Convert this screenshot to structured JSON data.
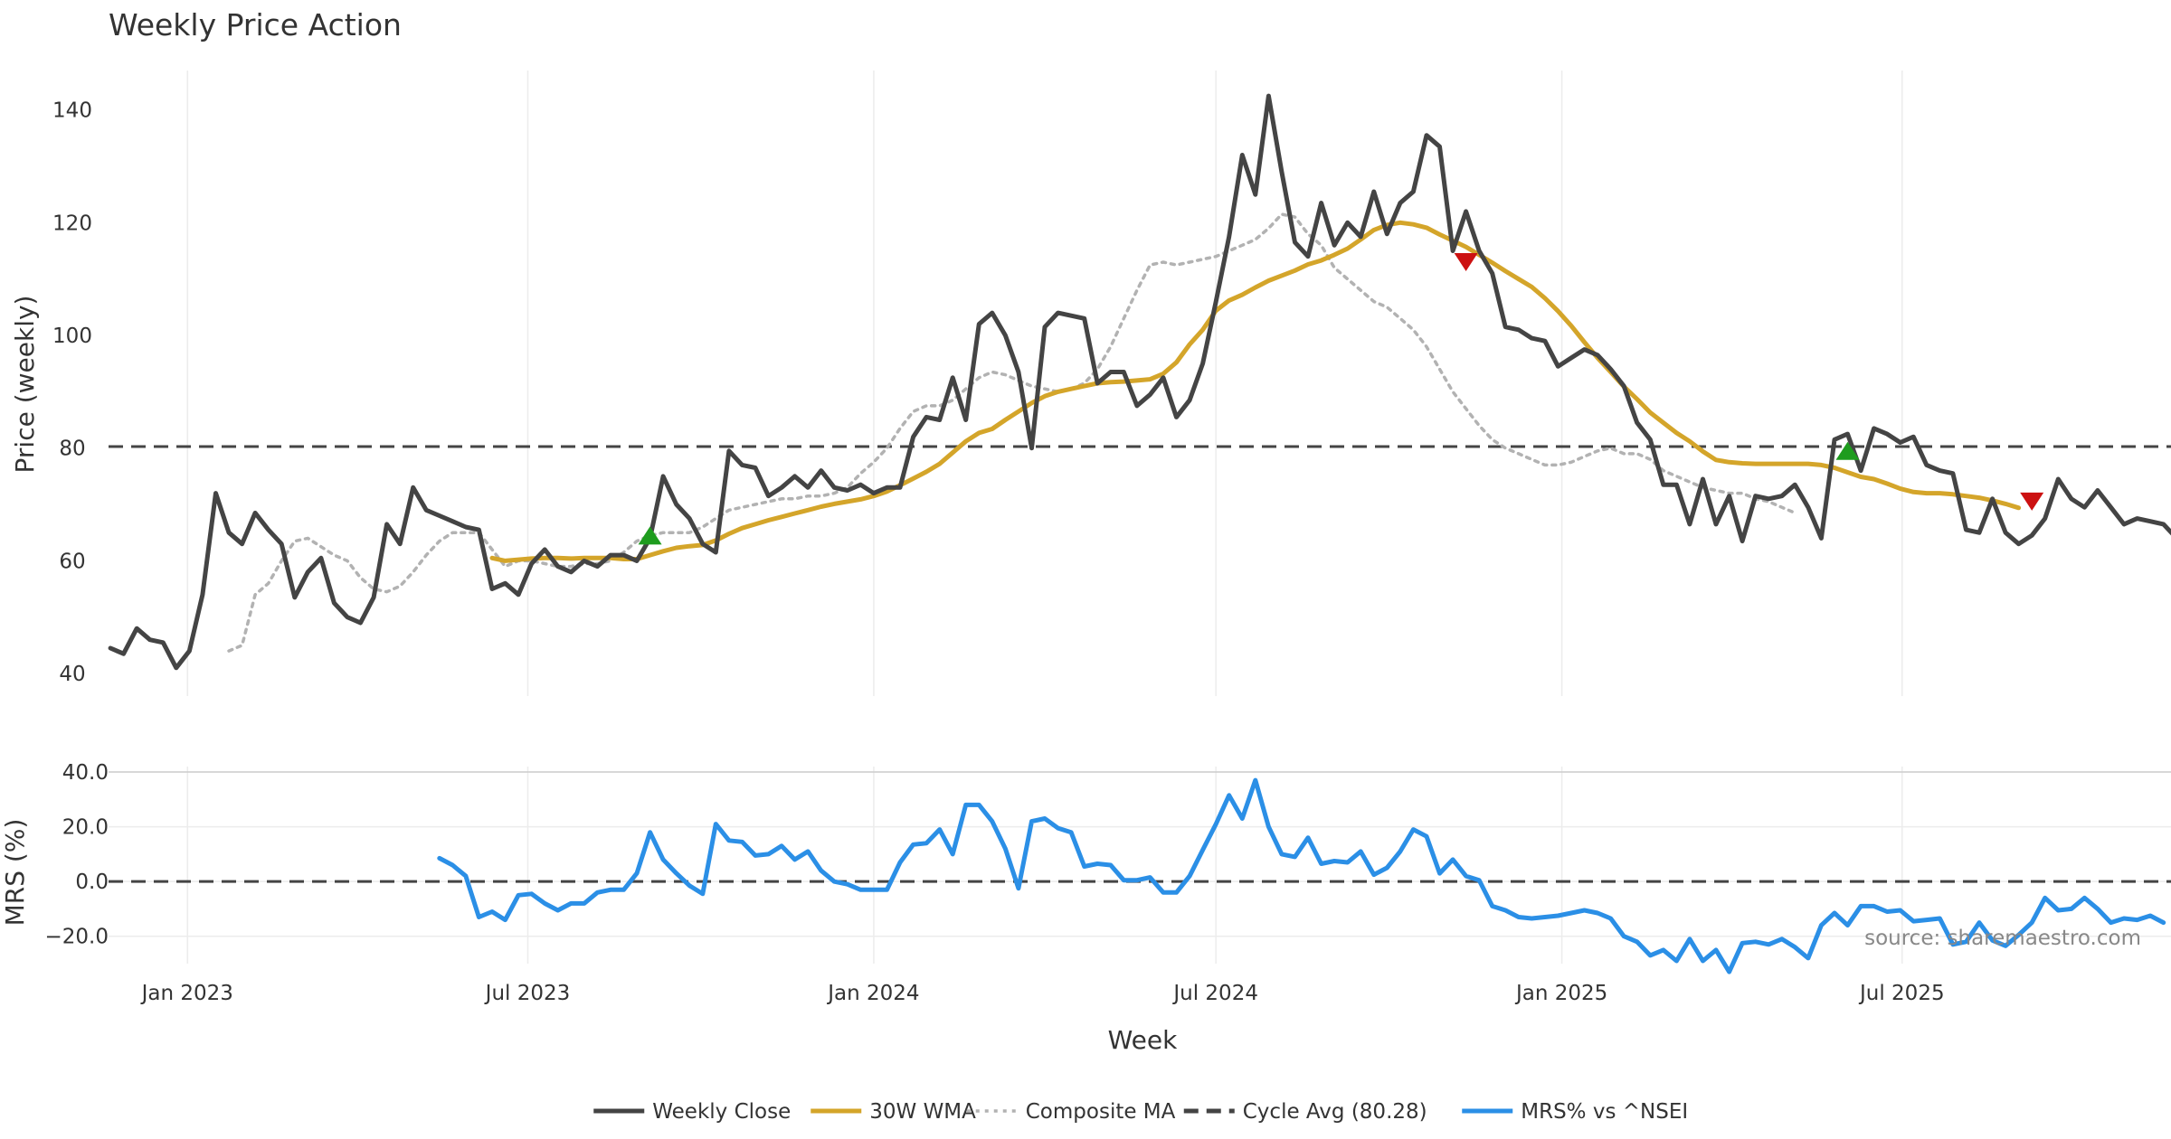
{
  "colors": {
    "close": "#444444",
    "wma": "#d4a52a",
    "composite": "#b2b2b2",
    "cycle": "#444444",
    "mrs": "#2b8fe6",
    "buy": "#1e9c1e",
    "sell": "#cc1111",
    "grid": "#ececec"
  },
  "chart_data": [
    {
      "type": "line",
      "title": "Weekly Price Action",
      "xlabel": "",
      "ylabel": "Price (weekly)",
      "ylim": [
        36,
        147
      ],
      "yticks": [
        40,
        60,
        80,
        100,
        120,
        140
      ],
      "x_start": "2022-11-21",
      "x_step_days": 7,
      "xlim": [
        "2022-11-20",
        "2025-11-21"
      ],
      "xticks": [
        {
          "date": "2023-01-01",
          "label": "Jan 2023"
        },
        {
          "date": "2023-07-01",
          "label": "Jul 2023"
        },
        {
          "date": "2024-01-01",
          "label": "Jan 2024"
        },
        {
          "date": "2024-07-01",
          "label": "Jul 2024"
        },
        {
          "date": "2025-01-01",
          "label": "Jan 2025"
        },
        {
          "date": "2025-07-01",
          "label": "Jul 2025"
        }
      ],
      "series": [
        {
          "name": "Weekly Close",
          "style": "solid",
          "start_index": 0,
          "values": [
            44.5,
            43.5,
            48,
            46,
            45.5,
            41,
            44,
            54,
            72,
            65,
            63,
            68.5,
            65.5,
            63,
            53.5,
            58,
            60.5,
            52.5,
            50,
            49,
            53.5,
            66.5,
            63,
            73,
            69,
            68,
            67,
            66,
            65.5,
            55,
            56,
            54,
            59.5,
            62,
            59,
            58,
            60,
            59,
            61,
            61,
            60,
            64,
            75,
            70,
            67.5,
            63,
            61.5,
            79.5,
            77,
            76.5,
            71.5,
            73,
            75,
            73,
            76,
            73,
            72.5,
            73.5,
            72,
            73,
            73,
            82,
            85.5,
            85,
            92.5,
            85,
            102,
            104,
            100,
            93.5,
            80,
            101.5,
            104,
            103.5,
            103,
            91.5,
            93.5,
            93.5,
            87.5,
            89.5,
            92.5,
            85.5,
            88.5,
            95,
            106,
            117.5,
            132,
            125,
            142.5,
            129,
            116.5,
            114,
            123.5,
            116,
            120,
            117.5,
            125.5,
            118,
            123.5,
            125.5,
            135.5,
            133.5,
            115,
            122,
            115,
            111,
            101.5,
            101,
            99.5,
            99,
            94.5,
            96,
            97.5,
            96.5,
            94,
            91,
            84.5,
            81.5,
            73.5,
            73.5,
            66.5,
            74.5,
            66.5,
            71.5,
            63.5,
            71.5,
            71,
            71.5,
            73.5,
            69.5,
            64,
            81.5,
            82.5,
            76,
            83.5,
            82.5,
            81,
            82,
            77,
            76,
            75.5,
            65.5,
            65,
            71,
            65,
            63,
            64.5,
            67.5,
            74.5,
            71,
            69.5,
            72.5,
            69.5,
            66.5,
            67.5,
            67,
            66.5,
            64
          ]
        },
        {
          "name": "30W WMA",
          "style": "solid",
          "start_index": 29,
          "values": [
            60.5,
            60,
            60.2,
            60.4,
            60.5,
            60.5,
            60.4,
            60.5,
            60.5,
            60.5,
            60.3,
            60.3,
            61,
            61.7,
            62.3,
            62.6,
            62.8,
            63.6,
            64.8,
            65.8,
            66.5,
            67.2,
            67.8,
            68.4,
            69,
            69.6,
            70.1,
            70.5,
            70.9,
            71.5,
            72.3,
            73.4,
            74.6,
            75.8,
            77.2,
            79.2,
            81.2,
            82.7,
            83.4,
            85,
            86.5,
            88,
            89.2,
            90,
            90.5,
            91,
            91.5,
            91.7,
            91.8,
            92,
            92.2,
            93.2,
            95.2,
            98.4,
            101,
            104.4,
            106.2,
            107.2,
            108.5,
            109.7,
            110.6,
            111.5,
            112.6,
            113.3,
            114.3,
            115.4,
            117,
            118.7,
            119.6,
            120,
            119.7,
            119.1,
            117.9,
            116.8,
            115.7,
            114.3,
            112.9,
            111.4,
            110,
            108.6,
            106.6,
            104.3,
            101.7,
            98.8,
            96,
            93.5,
            90.9,
            88.7,
            86.3,
            84.5,
            82.7,
            81.2,
            79.4,
            77.9,
            77.5,
            77.3,
            77.2,
            77.2,
            77.2,
            77.2,
            77.2,
            77,
            76.5,
            75.7,
            74.9,
            74.5,
            73.7,
            72.8,
            72.2,
            72,
            72,
            71.8,
            71.5,
            71.2,
            70.7,
            70.1,
            69.4
          ]
        },
        {
          "name": "Composite MA",
          "style": "dotted",
          "start_index": 9,
          "values": [
            44,
            45,
            54,
            56,
            60,
            63.5,
            64,
            62.5,
            61,
            60,
            57,
            55,
            54.5,
            55.5,
            58,
            61,
            63.5,
            65,
            65,
            65,
            62,
            59,
            60,
            60,
            59.5,
            59,
            59,
            59.5,
            59.5,
            60,
            61.5,
            63.5,
            64.5,
            65,
            65,
            65,
            66,
            67.5,
            69,
            69.5,
            70,
            70.5,
            71,
            71,
            71.5,
            71.5,
            72,
            73,
            75.5,
            77.5,
            80,
            83.5,
            86.5,
            87.5,
            87.5,
            88.5,
            90.5,
            92.5,
            93.5,
            93,
            92,
            91,
            90.5,
            90,
            90.5,
            91.5,
            94,
            98,
            103,
            108,
            112.5,
            113,
            112.5,
            113,
            113.5,
            114,
            115,
            116,
            117,
            119,
            121.5,
            121,
            118,
            116,
            112,
            110,
            108,
            106,
            105,
            103,
            101,
            98,
            94,
            90,
            87,
            84,
            81.5,
            80,
            79,
            78,
            77,
            77,
            77.5,
            78.5,
            79.5,
            80,
            79,
            79,
            78,
            76,
            75,
            74,
            73,
            72.5,
            72,
            72,
            71,
            70.5,
            69.5,
            68.5
          ]
        },
        {
          "name": "Cycle Avg (80.28)",
          "style": "dashed",
          "constant": 80.28
        }
      ],
      "markers": [
        {
          "name": "buy-signal",
          "shape": "triangle-up",
          "index": 41,
          "value": 64.5
        },
        {
          "name": "sell-signal",
          "shape": "triangle-down",
          "index": 103,
          "value": 113
        },
        {
          "name": "buy-signal",
          "shape": "triangle-up",
          "index": 132,
          "value": 79.5
        },
        {
          "name": "sell-signal",
          "shape": "triangle-down",
          "index": 146,
          "value": 70.5
        }
      ]
    },
    {
      "type": "line",
      "title": "",
      "xlabel": "Week",
      "ylabel": "MRS (%)",
      "ylim": [
        -30,
        42
      ],
      "yticks": [
        {
          "value": 40,
          "label": "40.0"
        },
        {
          "value": 20,
          "label": "20.0"
        },
        {
          "value": 0,
          "label": "0.0"
        },
        {
          "value": -20,
          "label": "−20.0"
        }
      ],
      "series": [
        {
          "name": "MRS% vs ^NSEI",
          "style": "solid",
          "start_index": 25,
          "values": [
            8.5,
            6,
            2,
            -13,
            -11,
            -14,
            -5,
            -4.5,
            -8,
            -10.5,
            -8,
            -8,
            -4,
            -3,
            -3,
            3,
            18,
            8,
            3,
            -1.5,
            -4.5,
            21,
            15,
            14.5,
            9.5,
            10,
            13,
            8,
            11,
            4,
            0,
            -1,
            -3,
            -3,
            -3,
            7,
            13.5,
            14,
            19,
            10,
            28,
            28,
            22,
            12,
            -2.5,
            22,
            23,
            19.5,
            18,
            5.5,
            6.5,
            6,
            0.5,
            0.5,
            1.5,
            -4,
            -4,
            2,
            11.5,
            21,
            31.5,
            23,
            37,
            20,
            10,
            9,
            16,
            6.5,
            7.5,
            7,
            11,
            2.5,
            5,
            11,
            19,
            16.5,
            3,
            8,
            2,
            0.5,
            -9,
            -10.5,
            -13,
            -13.5,
            -13,
            -12.5,
            -11.5,
            -10.5,
            -11.5,
            -13.5,
            -20,
            -22,
            -27,
            -25,
            -29,
            -21,
            -29,
            -25,
            -33,
            -22.5,
            -22,
            -23,
            -21,
            -24,
            -28,
            -16,
            -11.5,
            -16,
            -9,
            -9,
            -11,
            -10.5,
            -14.5,
            -14,
            -13.5,
            -23,
            -22,
            -15,
            -21.5,
            -23.5,
            -19.5,
            -15,
            -6,
            -10.5,
            -10,
            -6,
            -10,
            -15,
            -13.5,
            -14,
            -12.5,
            -15
          ]
        },
        {
          "name": "zero-line",
          "style": "dashed",
          "constant": 0
        }
      ]
    }
  ],
  "legend": [
    {
      "label": "Weekly Close",
      "style": "solid",
      "color": "#444444"
    },
    {
      "label": "30W WMA",
      "style": "solid",
      "color": "#d4a52a"
    },
    {
      "label": "Composite MA",
      "style": "dotted",
      "color": "#b2b2b2"
    },
    {
      "label": "Cycle Avg (80.28)",
      "style": "dashed",
      "color": "#444444"
    },
    {
      "label": "MRS% vs ^NSEI",
      "style": "solid",
      "color": "#2b8fe6"
    }
  ],
  "source_note": "source: sharemaestro.com"
}
